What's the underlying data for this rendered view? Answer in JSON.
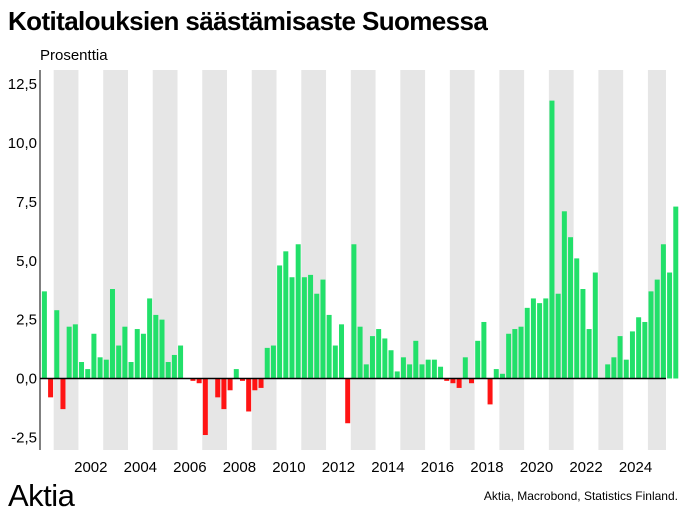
{
  "chart_data": {
    "type": "bar",
    "title": "Kotitalouksien säästämisaste Suomessa",
    "ylabel": "Prosenttia",
    "ylim": [
      -2.7,
      13.5
    ],
    "yticks": [
      -2.5,
      0,
      2.5,
      5,
      7.5,
      10,
      12.5
    ],
    "ytick_labels": [
      "-2,5",
      "0,0",
      "2,5",
      "5,0",
      "7,5",
      "10,0",
      "12,5"
    ],
    "xtick_labels": [
      "2002",
      "2004",
      "2006",
      "2008",
      "2010",
      "2012",
      "2014",
      "2016",
      "2018",
      "2020",
      "2022",
      "2024"
    ],
    "x_start": "2000Q3",
    "frequency": "quarterly",
    "values": [
      3.7,
      -0.8,
      2.9,
      -1.3,
      2.2,
      2.3,
      0.7,
      0.4,
      1.9,
      0.9,
      0.8,
      3.8,
      1.4,
      2.2,
      0.7,
      2.1,
      1.9,
      3.4,
      2.7,
      2.5,
      0.7,
      1.0,
      1.4,
      0.0,
      -0.1,
      -0.2,
      -2.4,
      0.0,
      -0.8,
      -1.3,
      -0.5,
      0.4,
      -0.1,
      -1.4,
      -0.5,
      -0.4,
      1.3,
      1.4,
      4.8,
      5.4,
      4.3,
      5.7,
      4.3,
      4.4,
      3.6,
      4.2,
      2.7,
      1.4,
      2.3,
      -1.9,
      5.7,
      2.2,
      0.6,
      1.8,
      2.1,
      1.7,
      1.2,
      0.3,
      0.9,
      0.6,
      1.6,
      0.6,
      0.8,
      0.8,
      0.5,
      -0.1,
      -0.2,
      -0.4,
      0.9,
      -0.2,
      1.6,
      2.4,
      -1.1,
      0.4,
      0.2,
      1.9,
      2.1,
      2.2,
      3.0,
      3.4,
      3.2,
      3.4,
      11.8,
      3.6,
      7.1,
      6.0,
      5.1,
      3.8,
      2.1,
      4.5,
      0.0,
      0.6,
      0.9,
      1.8,
      0.8,
      2.0,
      2.6,
      2.4,
      3.7,
      4.2,
      5.7,
      4.5,
      7.3
    ],
    "colors": {
      "positive": "#22e06a",
      "negative": "#ff1414",
      "band": "#e6e6e6"
    },
    "grid": false,
    "background_bands": "alternate years shaded"
  },
  "footer": {
    "logo": "Aktia",
    "source": "Aktia, Macrobond, Statistics Finland."
  }
}
